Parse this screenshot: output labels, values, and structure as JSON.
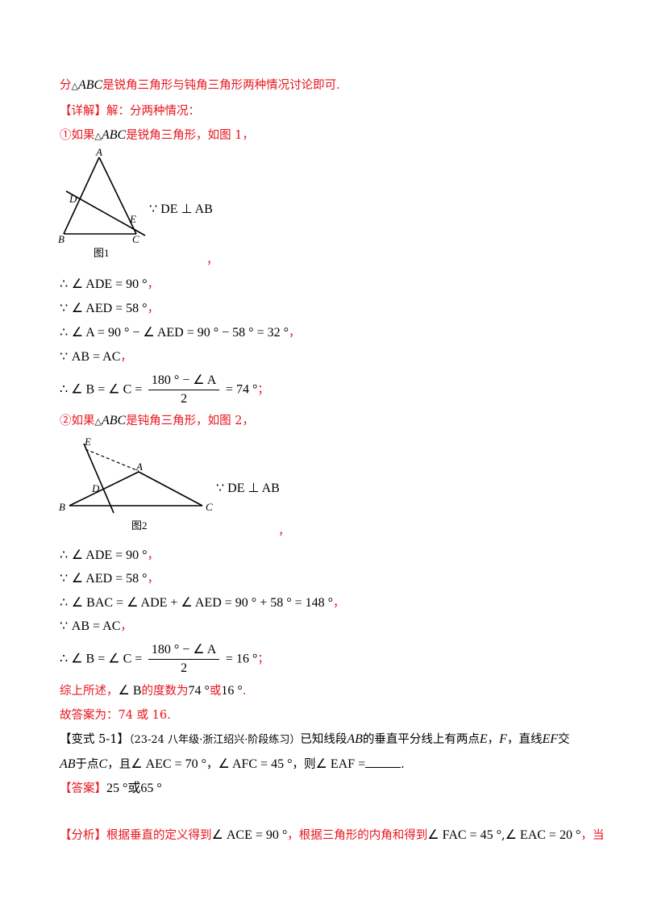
{
  "intro": {
    "pre": "分",
    "tri": "△",
    "abc": "ABC",
    "post": "是锐角三角形与钝角三角形两种情况讨论即可."
  },
  "detail": {
    "tag": "【详解】",
    "text": "解：分两种情况："
  },
  "case1": {
    "head_pre": "①如果",
    "head_tri": "△",
    "head_abc": "ABC",
    "head_post": "是锐角三角形，如图 1，",
    "figure": {
      "labels": {
        "A": "A",
        "B": "B",
        "C": "C",
        "D": "D",
        "E": "E"
      },
      "caption": "图1",
      "side_text": "∵ DE ⊥ AB",
      "trailing": "，"
    },
    "lines": [
      {
        "sym": "∴",
        "expr": "∠ ADE = 90 °",
        "punct": "，"
      },
      {
        "sym": "∵",
        "expr": "∠ AED = 58 °",
        "punct": "，"
      },
      {
        "sym": "∴",
        "expr": "∠ A = 90 ° − ∠ AED = 90 ° − 58 ° = 32 °",
        "punct": "，"
      },
      {
        "sym": "∵",
        "expr": "AB = AC",
        "punct": "，"
      }
    ],
    "final": {
      "lhs": "∴ ∠ B = ∠ C =",
      "num": "180 ° − ∠ A",
      "den": "2",
      "rhs": "= 74 °",
      "punct": "；"
    }
  },
  "case2": {
    "head_pre": "②如果",
    "head_tri": "△",
    "head_abc": "ABC",
    "head_post": "是钝角三角形，如图 2，",
    "figure": {
      "labels": {
        "A": "A",
        "B": "B",
        "C": "C",
        "D": "D",
        "E": "E"
      },
      "caption": "图2",
      "side_text": "∵ DE ⊥ AB",
      "trailing": "，"
    },
    "lines": [
      {
        "sym": "∴",
        "expr": "∠ ADE = 90 °",
        "punct": "，"
      },
      {
        "sym": "∵",
        "expr": "∠ AED = 58 °",
        "punct": "，"
      },
      {
        "sym": "∴",
        "expr": "∠ BAC = ∠ ADE + ∠ AED = 90 ° + 58 ° = 148 °",
        "punct": "，"
      },
      {
        "sym": "∵",
        "expr": "AB = AC",
        "punct": "，"
      }
    ],
    "final": {
      "lhs": "∴ ∠ B = ∠ C =",
      "num": "180 ° − ∠ A",
      "den": "2",
      "rhs": "= 16 °",
      "punct": "；"
    }
  },
  "summary": {
    "pre": "综上所述，",
    "angle": "∠ B",
    "mid": "的度数为",
    "v1": "74 °",
    "or": "或",
    "v2": "16 °",
    "end": "."
  },
  "answer_line": "故答案为：74 或 16.",
  "variant": {
    "tag": "【变式 5-1】",
    "source": "（23-24 八年级·浙江绍兴·阶段练习）",
    "text1": "已知线段",
    "seg1": "AB",
    "text2": "的垂直平分线上有两点",
    "e": "E",
    "comma": "，",
    "f": "F",
    "text3": "，直线",
    "ef": "EF",
    "text4": "交",
    "line2_ab": "AB",
    "line2_text": "于点",
    "c": "C",
    "line2_text2": "，且",
    "angle1": "∠ AEC = 70 °",
    "sep": "，",
    "angle2": "∠ AFC = 45 °",
    "then": "，则",
    "angle3": "∠ EAF =",
    "end": "."
  },
  "answer": {
    "tag": "【答案】",
    "text": "25 °或65 °"
  },
  "analysis": {
    "tag": "【分析】",
    "t1": "根据垂直的定义得到",
    "a1": "∠ ACE = 90 °",
    "t2": "，根据三角形的内角和得到",
    "a2": "∠ FAC = 45 °",
    "t3": ",",
    "a3": "∠ EAC = 20 °",
    "t4": "，当"
  }
}
